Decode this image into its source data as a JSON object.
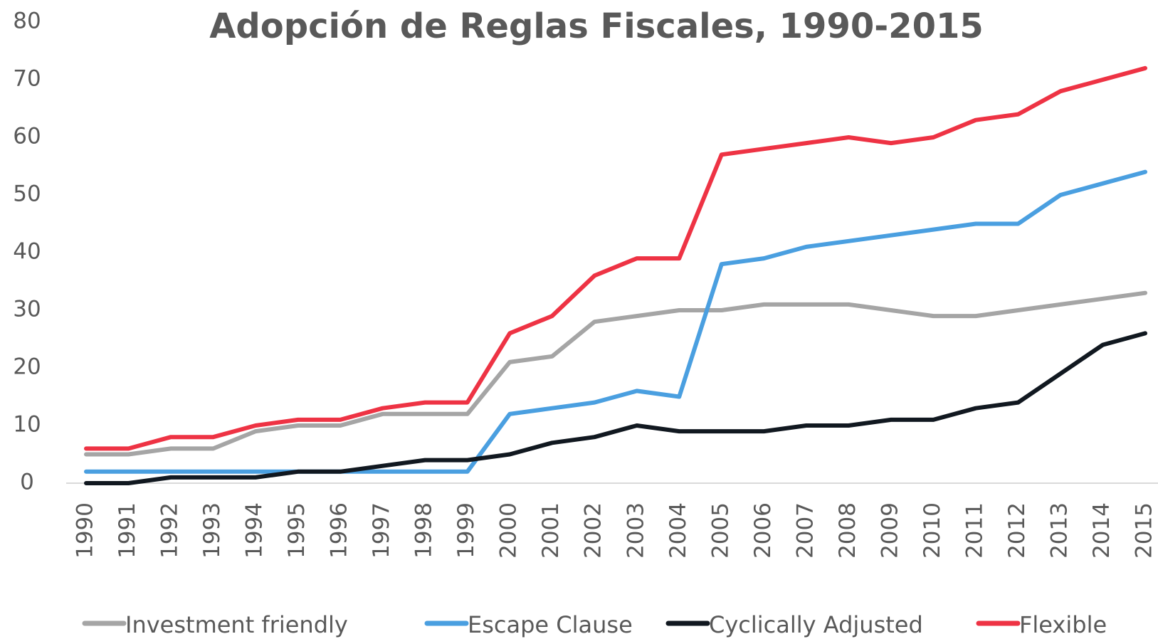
{
  "chart_data": {
    "type": "line",
    "title": "Adopción de Reglas Fiscales, 1990-2015",
    "categories": [
      "1990",
      "1991",
      "1992",
      "1993",
      "1994",
      "1995",
      "1996",
      "1997",
      "1998",
      "1999",
      "2000",
      "2001",
      "2002",
      "2003",
      "2004",
      "2005",
      "2006",
      "2007",
      "2008",
      "2009",
      "2010",
      "2011",
      "2012",
      "2013",
      "2014",
      "2015"
    ],
    "series": [
      {
        "name": "Investment friendly",
        "color": "#a5a5a5",
        "values": [
          5,
          5,
          6,
          6,
          9,
          10,
          10,
          12,
          12,
          12,
          21,
          22,
          28,
          29,
          30,
          30,
          31,
          31,
          31,
          30,
          29,
          29,
          30,
          31,
          32,
          33
        ]
      },
      {
        "name": "Escape Clause",
        "color": "#4a9fe0",
        "values": [
          2,
          2,
          2,
          2,
          2,
          2,
          2,
          2,
          2,
          2,
          12,
          13,
          14,
          16,
          15,
          38,
          39,
          41,
          42,
          43,
          44,
          45,
          45,
          50,
          52,
          54
        ]
      },
      {
        "name": "Cyclically Adjusted",
        "color": "#111820",
        "values": [
          0,
          0,
          1,
          1,
          1,
          2,
          2,
          3,
          4,
          4,
          5,
          7,
          8,
          10,
          9,
          9,
          9,
          10,
          10,
          11,
          11,
          13,
          14,
          19,
          24,
          26
        ]
      },
      {
        "name": "Flexible",
        "color": "#ee3344",
        "values": [
          6,
          6,
          8,
          8,
          10,
          11,
          11,
          13,
          14,
          14,
          26,
          29,
          36,
          39,
          39,
          57,
          58,
          59,
          60,
          59,
          60,
          63,
          64,
          68,
          70,
          72
        ]
      }
    ],
    "ylim": [
      0,
      80
    ],
    "yticks": [
      0,
      10,
      20,
      30,
      40,
      50,
      60,
      70,
      80
    ],
    "legend": "bottom"
  }
}
